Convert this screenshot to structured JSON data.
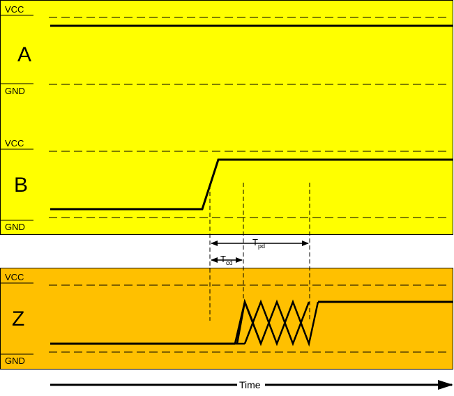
{
  "colors": {
    "panel_ab": "#FFFF00",
    "panel_z": "#FFC000",
    "line": "#000000"
  },
  "panel_a": {
    "label": "A",
    "vcc": "VCC",
    "gnd": "GND"
  },
  "panel_b": {
    "label": "B",
    "vcc": "VCC",
    "gnd": "GND"
  },
  "panel_z": {
    "label": "Z",
    "vcc": "VCC",
    "gnd": "GND"
  },
  "timing": {
    "tpd_main": "T",
    "tpd_sub": "pd",
    "tcd_main": "T",
    "tcd_sub": "cd"
  },
  "time_axis": {
    "label": "Time"
  }
}
